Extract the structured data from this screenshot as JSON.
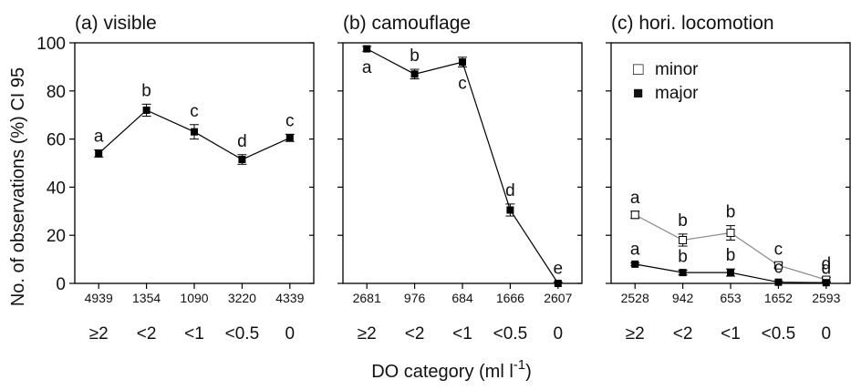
{
  "figure": {
    "ylabel": "No. of observations (%) CI 95",
    "xlabel": "DO category (ml l",
    "xlabel_sup": "-1",
    "xlabel_close": ")",
    "y_ticks": [
      "0",
      "20",
      "40",
      "60",
      "80",
      "100"
    ],
    "categories": [
      "≥2",
      "<2",
      "<1",
      "<0.5",
      "0"
    ],
    "line_colors": {
      "major": "#000000",
      "minor": "#888888"
    },
    "legend": [
      {
        "glyph": "□",
        "label": "minor"
      },
      {
        "glyph": "■",
        "label": "major"
      }
    ]
  },
  "chart_data": [
    {
      "type": "line",
      "title": "(a) visible",
      "categories": [
        "≥2",
        "<2",
        "<1",
        "<0.5",
        "0"
      ],
      "n_labels": [
        "4939",
        "1354",
        "1090",
        "3220",
        "4339"
      ],
      "ylim": [
        0,
        100
      ],
      "series": [
        {
          "marker": "filled",
          "values": [
            54,
            72,
            63,
            51.5,
            60.5
          ],
          "ci": [
            1.5,
            2.5,
            3,
            2,
            1.5
          ],
          "letters": [
            "a",
            "b",
            "c",
            "d",
            "c"
          ],
          "letter_pos": [
            "above",
            "above",
            "above",
            "above",
            "above"
          ]
        }
      ]
    },
    {
      "type": "line",
      "title": "(b) camouflage",
      "categories": [
        "≥2",
        "<2",
        "<1",
        "<0.5",
        "0"
      ],
      "n_labels": [
        "2681",
        "976",
        "684",
        "1666",
        "2607"
      ],
      "ylim": [
        0,
        100
      ],
      "series": [
        {
          "marker": "filled",
          "values": [
            97.5,
            87,
            92,
            30.5,
            0
          ],
          "ci": [
            1,
            2,
            2,
            2.5,
            0.5
          ],
          "letters": [
            "a",
            "b",
            "c",
            "d",
            "e"
          ],
          "letter_pos": [
            "below",
            "above",
            "below",
            "above",
            "above"
          ]
        }
      ]
    },
    {
      "type": "line",
      "title": "(c) hori. locomotion",
      "categories": [
        "≥2",
        "<2",
        "<1",
        "<0.5",
        "0"
      ],
      "n_labels": [
        "2528",
        "942",
        "653",
        "1652",
        "2593"
      ],
      "ylim": [
        0,
        100
      ],
      "series": [
        {
          "name": "minor",
          "marker": "open",
          "values": [
            28.5,
            18,
            21,
            7.5,
            1.5
          ],
          "ci": [
            1.5,
            2.5,
            3,
            1,
            1
          ],
          "letters": [
            "a",
            "b",
            "b",
            "c",
            "d"
          ],
          "letter_pos": [
            "above",
            "above",
            "above",
            "above",
            "above"
          ]
        },
        {
          "name": "major",
          "marker": "filled",
          "values": [
            8,
            4.5,
            4.5,
            0.5,
            0.3
          ],
          "ci": [
            0.5,
            1,
            1.5,
            0.5,
            0.3
          ],
          "letters": [
            "a",
            "b",
            "b",
            "c",
            "d"
          ],
          "letter_pos": [
            "above",
            "above",
            "above",
            "above",
            "above"
          ]
        }
      ]
    }
  ]
}
